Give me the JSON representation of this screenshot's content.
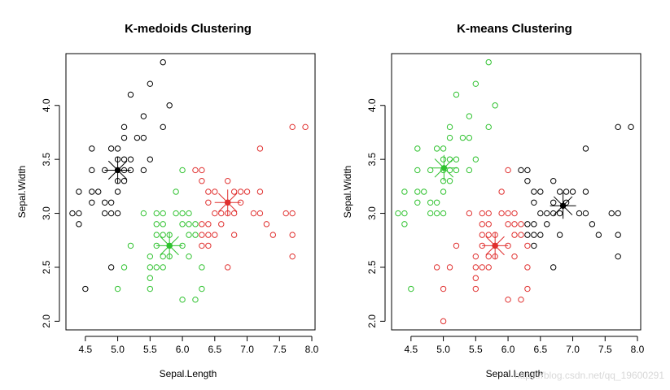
{
  "watermark": "https://blog.csdn.net/qq_19600291",
  "colors": {
    "1": "#000000",
    "2": "#e0302f",
    "3": "#2fc22f"
  },
  "chart_data": [
    {
      "type": "scatter",
      "title": "K-medoids Clustering",
      "xlabel": "Sepal.Length",
      "ylabel": "Sepal.Width",
      "xlim": [
        4.2,
        8.05
      ],
      "ylim": [
        1.92,
        4.48
      ],
      "xticks": [
        4.5,
        5.0,
        5.5,
        6.0,
        6.5,
        7.0,
        7.5,
        8.0
      ],
      "xtick_labels": [
        "4.5",
        "5.0",
        "5.5",
        "6.0",
        "6.5",
        "7.0",
        "7.5",
        "8.0"
      ],
      "yticks": [
        2.0,
        2.5,
        3.0,
        3.5,
        4.0
      ],
      "ytick_labels": [
        "2.0",
        "2.5",
        "3.0",
        "3.5",
        "4.0"
      ],
      "centers": [
        {
          "x": 5.0,
          "y": 3.4,
          "cluster": 1
        },
        {
          "x": 6.7,
          "y": 3.1,
          "cluster": 2
        },
        {
          "x": 5.8,
          "y": 2.7,
          "cluster": 3
        }
      ],
      "points": [
        [
          4.3,
          3.0,
          1
        ],
        [
          4.4,
          2.9,
          1
        ],
        [
          4.4,
          3.0,
          1
        ],
        [
          4.4,
          3.2,
          1
        ],
        [
          4.5,
          2.3,
          1
        ],
        [
          4.6,
          3.1,
          1
        ],
        [
          4.6,
          3.2,
          1
        ],
        [
          4.6,
          3.4,
          1
        ],
        [
          4.6,
          3.6,
          1
        ],
        [
          4.7,
          3.2,
          1
        ],
        [
          4.8,
          3.0,
          1
        ],
        [
          4.8,
          3.1,
          1
        ],
        [
          4.8,
          3.4,
          1
        ],
        [
          4.9,
          2.5,
          1
        ],
        [
          4.9,
          3.0,
          1
        ],
        [
          4.9,
          3.1,
          1
        ],
        [
          4.9,
          3.6,
          1
        ],
        [
          5.0,
          2.3,
          3
        ],
        [
          5.0,
          3.0,
          1
        ],
        [
          5.0,
          3.2,
          1
        ],
        [
          5.0,
          3.3,
          1
        ],
        [
          5.0,
          3.4,
          1
        ],
        [
          5.0,
          3.5,
          1
        ],
        [
          5.0,
          3.6,
          1
        ],
        [
          5.1,
          2.5,
          3
        ],
        [
          5.1,
          3.3,
          1
        ],
        [
          5.1,
          3.4,
          1
        ],
        [
          5.1,
          3.5,
          1
        ],
        [
          5.1,
          3.7,
          1
        ],
        [
          5.1,
          3.8,
          1
        ],
        [
          5.2,
          2.7,
          3
        ],
        [
          5.2,
          3.4,
          1
        ],
        [
          5.2,
          3.5,
          1
        ],
        [
          5.2,
          4.1,
          1
        ],
        [
          5.3,
          3.7,
          1
        ],
        [
          5.4,
          3.0,
          3
        ],
        [
          5.4,
          3.4,
          1
        ],
        [
          5.4,
          3.7,
          1
        ],
        [
          5.4,
          3.9,
          1
        ],
        [
          5.5,
          2.3,
          3
        ],
        [
          5.5,
          2.4,
          3
        ],
        [
          5.5,
          2.5,
          3
        ],
        [
          5.5,
          2.6,
          3
        ],
        [
          5.5,
          3.5,
          1
        ],
        [
          5.5,
          4.2,
          1
        ],
        [
          5.6,
          2.5,
          3
        ],
        [
          5.6,
          2.7,
          3
        ],
        [
          5.6,
          2.8,
          3
        ],
        [
          5.6,
          2.9,
          3
        ],
        [
          5.6,
          3.0,
          3
        ],
        [
          5.7,
          2.5,
          3
        ],
        [
          5.7,
          2.6,
          3
        ],
        [
          5.7,
          2.8,
          3
        ],
        [
          5.7,
          2.9,
          3
        ],
        [
          5.7,
          3.0,
          3
        ],
        [
          5.7,
          3.8,
          1
        ],
        [
          5.7,
          4.4,
          1
        ],
        [
          5.8,
          2.6,
          3
        ],
        [
          5.8,
          2.7,
          3
        ],
        [
          5.8,
          2.8,
          3
        ],
        [
          5.8,
          4.0,
          1
        ],
        [
          5.9,
          3.0,
          3
        ],
        [
          5.9,
          3.2,
          3
        ],
        [
          6.0,
          2.2,
          3
        ],
        [
          6.0,
          2.7,
          3
        ],
        [
          6.0,
          2.9,
          3
        ],
        [
          6.0,
          3.0,
          3
        ],
        [
          6.0,
          3.4,
          3
        ],
        [
          6.1,
          2.6,
          3
        ],
        [
          6.1,
          2.8,
          3
        ],
        [
          6.1,
          2.9,
          3
        ],
        [
          6.1,
          3.0,
          3
        ],
        [
          6.2,
          2.2,
          3
        ],
        [
          6.2,
          2.8,
          3
        ],
        [
          6.2,
          2.9,
          3
        ],
        [
          6.2,
          3.4,
          2
        ],
        [
          6.3,
          2.3,
          3
        ],
        [
          6.3,
          2.5,
          3
        ],
        [
          6.3,
          2.7,
          2
        ],
        [
          6.3,
          2.8,
          2
        ],
        [
          6.3,
          2.9,
          2
        ],
        [
          6.3,
          3.3,
          2
        ],
        [
          6.3,
          3.4,
          2
        ],
        [
          6.4,
          2.7,
          2
        ],
        [
          6.4,
          2.8,
          2
        ],
        [
          6.4,
          2.9,
          2
        ],
        [
          6.4,
          3.1,
          2
        ],
        [
          6.4,
          3.2,
          2
        ],
        [
          6.5,
          2.8,
          2
        ],
        [
          6.5,
          3.0,
          2
        ],
        [
          6.5,
          3.2,
          2
        ],
        [
          6.6,
          2.9,
          2
        ],
        [
          6.6,
          3.0,
          2
        ],
        [
          6.7,
          2.5,
          2
        ],
        [
          6.7,
          3.0,
          2
        ],
        [
          6.7,
          3.1,
          2
        ],
        [
          6.7,
          3.3,
          2
        ],
        [
          6.8,
          2.8,
          2
        ],
        [
          6.8,
          3.0,
          2
        ],
        [
          6.8,
          3.2,
          2
        ],
        [
          6.9,
          3.1,
          2
        ],
        [
          6.9,
          3.2,
          2
        ],
        [
          7.0,
          3.2,
          2
        ],
        [
          7.1,
          3.0,
          2
        ],
        [
          7.2,
          3.0,
          2
        ],
        [
          7.2,
          3.2,
          2
        ],
        [
          7.2,
          3.6,
          2
        ],
        [
          7.3,
          2.9,
          2
        ],
        [
          7.4,
          2.8,
          2
        ],
        [
          7.6,
          3.0,
          2
        ],
        [
          7.7,
          2.6,
          2
        ],
        [
          7.7,
          2.8,
          2
        ],
        [
          7.7,
          3.0,
          2
        ],
        [
          7.7,
          3.8,
          2
        ],
        [
          7.9,
          3.8,
          2
        ]
      ]
    },
    {
      "type": "scatter",
      "title": "K-means Clustering",
      "xlabel": "Sepal.Length",
      "ylabel": "Sepal.Width",
      "xlim": [
        4.2,
        8.05
      ],
      "ylim": [
        1.92,
        4.48
      ],
      "xticks": [
        4.5,
        5.0,
        5.5,
        6.0,
        6.5,
        7.0,
        7.5,
        8.0
      ],
      "xtick_labels": [
        "4.5",
        "5.0",
        "5.5",
        "6.0",
        "6.5",
        "7.0",
        "7.5",
        "8.0"
      ],
      "yticks": [
        2.0,
        2.5,
        3.0,
        3.5,
        4.0
      ],
      "ytick_labels": [
        "2.0",
        "2.5",
        "3.0",
        "3.5",
        "4.0"
      ],
      "centers": [
        {
          "x": 5.01,
          "y": 3.42,
          "cluster": 3
        },
        {
          "x": 5.8,
          "y": 2.7,
          "cluster": 2
        },
        {
          "x": 6.85,
          "y": 3.07,
          "cluster": 1
        }
      ],
      "points": [
        [
          4.3,
          3.0,
          3
        ],
        [
          4.4,
          2.9,
          3
        ],
        [
          4.4,
          3.0,
          3
        ],
        [
          4.4,
          3.2,
          3
        ],
        [
          4.5,
          2.3,
          3
        ],
        [
          4.6,
          3.1,
          3
        ],
        [
          4.6,
          3.2,
          3
        ],
        [
          4.6,
          3.4,
          3
        ],
        [
          4.6,
          3.6,
          3
        ],
        [
          4.7,
          3.2,
          3
        ],
        [
          4.8,
          3.0,
          3
        ],
        [
          4.8,
          3.1,
          3
        ],
        [
          4.8,
          3.4,
          3
        ],
        [
          4.9,
          2.5,
          2
        ],
        [
          4.9,
          3.0,
          3
        ],
        [
          4.9,
          3.1,
          3
        ],
        [
          4.9,
          3.6,
          3
        ],
        [
          5.0,
          2.0,
          2
        ],
        [
          5.0,
          2.3,
          2
        ],
        [
          5.0,
          3.0,
          3
        ],
        [
          5.0,
          3.2,
          3
        ],
        [
          5.0,
          3.3,
          3
        ],
        [
          5.0,
          3.4,
          3
        ],
        [
          5.0,
          3.5,
          3
        ],
        [
          5.0,
          3.6,
          3
        ],
        [
          5.1,
          2.5,
          2
        ],
        [
          5.1,
          3.3,
          3
        ],
        [
          5.1,
          3.4,
          3
        ],
        [
          5.1,
          3.5,
          3
        ],
        [
          5.1,
          3.7,
          3
        ],
        [
          5.1,
          3.8,
          3
        ],
        [
          5.2,
          2.7,
          2
        ],
        [
          5.2,
          3.4,
          3
        ],
        [
          5.2,
          3.5,
          3
        ],
        [
          5.2,
          4.1,
          3
        ],
        [
          5.3,
          3.7,
          3
        ],
        [
          5.4,
          3.0,
          2
        ],
        [
          5.4,
          3.4,
          3
        ],
        [
          5.4,
          3.7,
          3
        ],
        [
          5.4,
          3.9,
          3
        ],
        [
          5.5,
          2.3,
          2
        ],
        [
          5.5,
          2.4,
          2
        ],
        [
          5.5,
          2.5,
          2
        ],
        [
          5.5,
          2.6,
          2
        ],
        [
          5.5,
          3.5,
          3
        ],
        [
          5.5,
          4.2,
          3
        ],
        [
          5.6,
          2.5,
          2
        ],
        [
          5.6,
          2.7,
          2
        ],
        [
          5.6,
          2.8,
          2
        ],
        [
          5.6,
          2.9,
          2
        ],
        [
          5.6,
          3.0,
          2
        ],
        [
          5.7,
          2.5,
          2
        ],
        [
          5.7,
          2.6,
          2
        ],
        [
          5.7,
          2.8,
          2
        ],
        [
          5.7,
          2.9,
          2
        ],
        [
          5.7,
          3.0,
          2
        ],
        [
          5.7,
          3.8,
          3
        ],
        [
          5.7,
          4.4,
          3
        ],
        [
          5.8,
          2.6,
          2
        ],
        [
          5.8,
          2.7,
          2
        ],
        [
          5.8,
          2.8,
          2
        ],
        [
          5.8,
          4.0,
          3
        ],
        [
          5.9,
          3.0,
          2
        ],
        [
          5.9,
          3.2,
          2
        ],
        [
          6.0,
          2.2,
          2
        ],
        [
          6.0,
          2.7,
          2
        ],
        [
          6.0,
          2.9,
          2
        ],
        [
          6.0,
          3.0,
          2
        ],
        [
          6.0,
          3.4,
          2
        ],
        [
          6.1,
          2.6,
          2
        ],
        [
          6.1,
          2.8,
          2
        ],
        [
          6.1,
          2.9,
          2
        ],
        [
          6.1,
          3.0,
          2
        ],
        [
          6.2,
          2.2,
          2
        ],
        [
          6.2,
          2.8,
          2
        ],
        [
          6.2,
          2.9,
          2
        ],
        [
          6.2,
          3.4,
          1
        ],
        [
          6.3,
          2.3,
          2
        ],
        [
          6.3,
          2.5,
          2
        ],
        [
          6.3,
          2.7,
          2
        ],
        [
          6.3,
          2.8,
          1
        ],
        [
          6.3,
          2.9,
          1
        ],
        [
          6.3,
          3.3,
          1
        ],
        [
          6.3,
          3.4,
          1
        ],
        [
          6.4,
          2.7,
          1
        ],
        [
          6.4,
          2.8,
          1
        ],
        [
          6.4,
          2.9,
          1
        ],
        [
          6.4,
          3.1,
          1
        ],
        [
          6.4,
          3.2,
          1
        ],
        [
          6.5,
          2.8,
          1
        ],
        [
          6.5,
          3.0,
          1
        ],
        [
          6.5,
          3.2,
          1
        ],
        [
          6.6,
          2.9,
          1
        ],
        [
          6.6,
          3.0,
          1
        ],
        [
          6.7,
          2.5,
          1
        ],
        [
          6.7,
          3.0,
          1
        ],
        [
          6.7,
          3.1,
          1
        ],
        [
          6.7,
          3.3,
          1
        ],
        [
          6.8,
          2.8,
          1
        ],
        [
          6.8,
          3.0,
          1
        ],
        [
          6.8,
          3.2,
          1
        ],
        [
          6.9,
          3.1,
          1
        ],
        [
          6.9,
          3.2,
          1
        ],
        [
          7.0,
          3.2,
          1
        ],
        [
          7.1,
          3.0,
          1
        ],
        [
          7.2,
          3.0,
          1
        ],
        [
          7.2,
          3.2,
          1
        ],
        [
          7.2,
          3.6,
          1
        ],
        [
          7.3,
          2.9,
          1
        ],
        [
          7.4,
          2.8,
          1
        ],
        [
          7.6,
          3.0,
          1
        ],
        [
          7.7,
          2.6,
          1
        ],
        [
          7.7,
          2.8,
          1
        ],
        [
          7.7,
          3.0,
          1
        ],
        [
          7.7,
          3.8,
          1
        ],
        [
          7.9,
          3.8,
          1
        ]
      ]
    }
  ]
}
